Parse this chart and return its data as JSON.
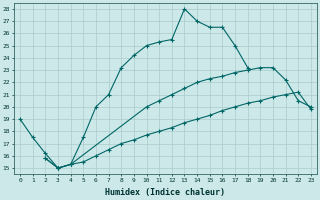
{
  "xlabel": "Humidex (Indice chaleur)",
  "background_color": "#cde8e8",
  "grid_color": "#aacccc",
  "line_color": "#006666",
  "xlim": [
    -0.5,
    23.5
  ],
  "ylim": [
    14.5,
    28.5
  ],
  "xticks": [
    0,
    1,
    2,
    3,
    4,
    5,
    6,
    7,
    8,
    9,
    10,
    11,
    12,
    13,
    14,
    15,
    16,
    17,
    18,
    19,
    20,
    21,
    22,
    23
  ],
  "yticks": [
    15,
    16,
    17,
    18,
    19,
    20,
    21,
    22,
    23,
    24,
    25,
    26,
    27,
    28
  ],
  "line1_x": [
    0,
    1,
    2,
    3,
    4,
    5,
    6,
    7,
    8,
    9,
    10,
    11,
    12,
    13,
    14,
    15,
    16,
    17,
    18
  ],
  "line1_y": [
    19.0,
    17.5,
    16.2,
    15.0,
    15.3,
    17.5,
    20.0,
    21.0,
    23.2,
    24.2,
    25.0,
    25.3,
    25.5,
    28.0,
    27.0,
    26.5,
    26.5,
    25.0,
    23.2
  ],
  "line2_x": [
    2,
    3,
    4,
    10,
    11,
    12,
    13,
    14,
    15,
    16,
    17,
    18,
    19,
    20,
    21,
    22,
    23
  ],
  "line2_y": [
    15.8,
    15.0,
    15.3,
    20.0,
    20.5,
    21.0,
    21.5,
    22.0,
    22.3,
    22.5,
    22.8,
    23.0,
    23.2,
    23.2,
    22.2,
    20.5,
    20.0
  ],
  "line3_x": [
    2,
    3,
    4,
    5,
    6,
    7,
    8,
    9,
    10,
    11,
    12,
    13,
    14,
    15,
    16,
    17,
    18,
    19,
    20,
    21,
    22,
    23
  ],
  "line3_y": [
    15.8,
    15.0,
    15.3,
    15.5,
    16.0,
    16.5,
    17.0,
    17.3,
    17.7,
    18.0,
    18.3,
    18.7,
    19.0,
    19.3,
    19.7,
    20.0,
    20.3,
    20.5,
    20.8,
    21.0,
    21.2,
    19.8
  ]
}
